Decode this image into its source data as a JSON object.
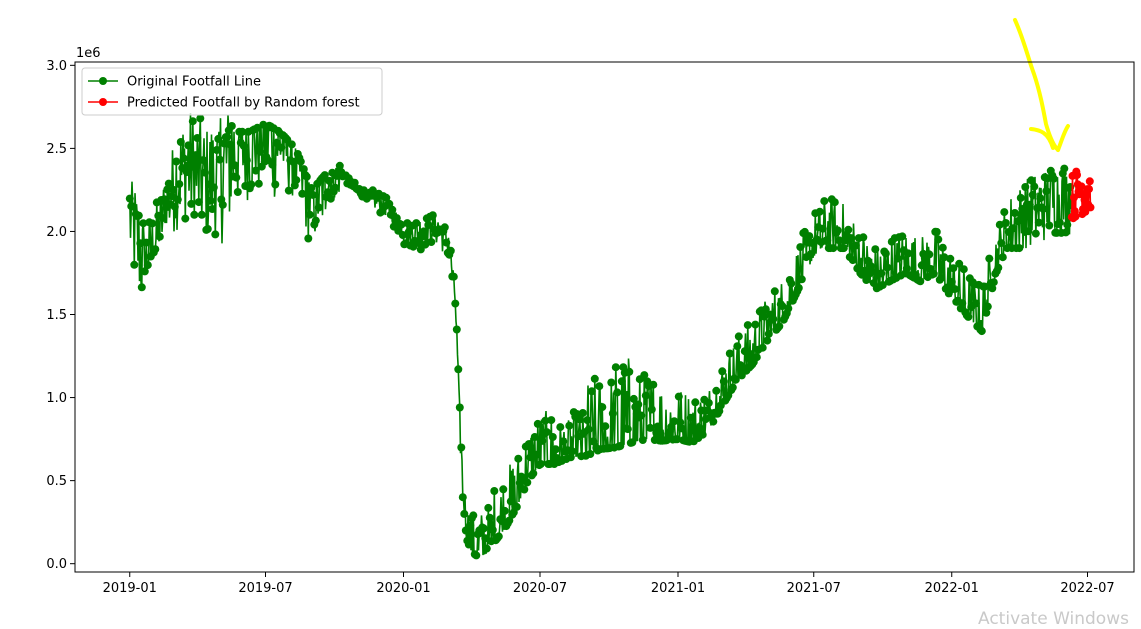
{
  "chart_data": {
    "type": "line",
    "x_type": "date",
    "xlim": [
      "2018-10-20",
      "2022-09-01"
    ],
    "ylim": [
      -50000,
      3020000
    ],
    "y_offset_label": "1e6",
    "x_ticks": [
      {
        "value": "2019-01-01",
        "label": "2019-01"
      },
      {
        "value": "2019-07-01",
        "label": "2019-07"
      },
      {
        "value": "2020-01-01",
        "label": "2020-01"
      },
      {
        "value": "2020-07-01",
        "label": "2020-07"
      },
      {
        "value": "2021-01-01",
        "label": "2021-01"
      },
      {
        "value": "2021-07-01",
        "label": "2021-07"
      },
      {
        "value": "2022-01-01",
        "label": "2022-01"
      },
      {
        "value": "2022-07-01",
        "label": "2022-07"
      }
    ],
    "y_ticks": [
      {
        "value": 0,
        "label": "0.0"
      },
      {
        "value": 500000,
        "label": "0.5"
      },
      {
        "value": 1000000,
        "label": "1.0"
      },
      {
        "value": 1500000,
        "label": "1.5"
      },
      {
        "value": 2000000,
        "label": "2.0"
      },
      {
        "value": 2500000,
        "label": "2.5"
      },
      {
        "value": 3000000,
        "label": "3.0"
      }
    ],
    "legend_position": "top-left",
    "grid": false,
    "series": [
      {
        "name": "Original Footfall Line",
        "color": "#008000",
        "marker": "circle",
        "x": [
          "2019-01-01",
          "2019-01-20",
          "2019-02-10",
          "2019-03-01",
          "2019-03-20",
          "2019-04-10",
          "2019-05-01",
          "2019-05-20",
          "2019-06-10",
          "2019-07-01",
          "2019-07-20",
          "2019-08-10",
          "2019-09-01",
          "2019-09-20",
          "2019-10-10",
          "2019-11-01",
          "2019-11-20",
          "2019-12-10",
          "2020-01-01",
          "2020-01-20",
          "2020-02-10",
          "2020-03-01",
          "2020-03-10",
          "2020-03-15",
          "2020-03-20",
          "2020-03-25",
          "2020-04-01",
          "2020-04-10",
          "2020-04-20",
          "2020-05-01",
          "2020-05-15",
          "2020-06-01",
          "2020-06-15",
          "2020-07-01",
          "2020-07-20",
          "2020-08-10",
          "2020-09-01",
          "2020-09-20",
          "2020-10-10",
          "2020-11-01",
          "2020-11-20",
          "2020-12-10",
          "2021-01-01",
          "2021-01-20",
          "2021-02-10",
          "2021-03-01",
          "2021-03-20",
          "2021-04-10",
          "2021-05-01",
          "2021-05-20",
          "2021-06-10",
          "2021-07-01",
          "2021-07-20",
          "2021-08-10",
          "2021-09-01",
          "2021-09-20",
          "2021-10-10",
          "2021-11-01",
          "2021-11-20",
          "2021-12-10",
          "2022-01-01",
          "2022-01-20",
          "2022-02-10",
          "2022-03-01",
          "2022-03-20",
          "2022-04-10",
          "2022-05-01",
          "2022-05-20",
          "2022-06-10"
        ],
        "y": [
          2100000,
          1800000,
          2000000,
          2300000,
          2400000,
          2300000,
          2350000,
          2500000,
          2550000,
          2600000,
          2550000,
          2450000,
          2200000,
          2300000,
          2350000,
          2250000,
          2200000,
          2150000,
          2000000,
          2000000,
          2050000,
          1950000,
          1600000,
          1000000,
          450000,
          200000,
          120000,
          90000,
          110000,
          180000,
          260000,
          400000,
          550000,
          650000,
          650000,
          690000,
          700000,
          740000,
          750000,
          780000,
          800000,
          790000,
          800000,
          780000,
          850000,
          1000000,
          1150000,
          1250000,
          1400000,
          1500000,
          1700000,
          1900000,
          2000000,
          1950000,
          1800000,
          1700000,
          1750000,
          1800000,
          1750000,
          1800000,
          1650000,
          1550000,
          1450000,
          1800000,
          2000000,
          2100000,
          2150000,
          2200000,
          2200000
        ],
        "scatter_band": [
          1600000,
          2300000,
          2200000,
          2700000,
          2050000,
          2600000,
          2000000,
          2700000,
          2100000,
          2900000,
          1800000,
          2600000,
          1700000,
          2700000,
          1800000,
          2600000,
          1700000,
          2500000,
          1650000,
          2500000,
          1700000,
          2300000,
          1200000,
          1900000,
          250000,
          900000,
          100000,
          400000,
          80000,
          140000,
          90000,
          150000,
          120000,
          260000,
          200000,
          340000,
          350000,
          560000,
          500000,
          770000,
          520000,
          780000,
          540000,
          850000,
          560000,
          900000,
          580000,
          920000,
          600000,
          950000,
          610000,
          1000000,
          620000,
          1050000,
          600000,
          1100000,
          500000,
          1000000,
          700000,
          1350000,
          900000,
          1550000,
          1000000,
          1600000,
          1200000,
          1800000,
          1500000,
          2100000,
          1800000,
          2200000,
          1700000,
          2200000,
          1300000,
          2200000,
          1300000,
          2200000,
          1300000,
          2400000,
          1300000,
          2100000,
          1100000,
          1900000,
          1500000,
          2200000,
          1800000,
          2400000,
          1900000,
          2400000
        ]
      },
      {
        "name": "Predicted Footfall by Random forest",
        "color": "#ff0000",
        "marker": "circle",
        "x": [
          "2022-06-10",
          "2022-06-15",
          "2022-06-20",
          "2022-06-25",
          "2022-07-01",
          "2022-07-05"
        ],
        "y": [
          2200000,
          2250000,
          2300000,
          2250000,
          2350000,
          2200000
        ],
        "y_low": [
          2070000,
          2080000,
          2100000,
          2080000,
          2100000,
          2100000
        ],
        "y_high": [
          2350000,
          2380000,
          2400000,
          2390000,
          2420000,
          2430000
        ]
      }
    ]
  },
  "watermark": "Activate Windows"
}
